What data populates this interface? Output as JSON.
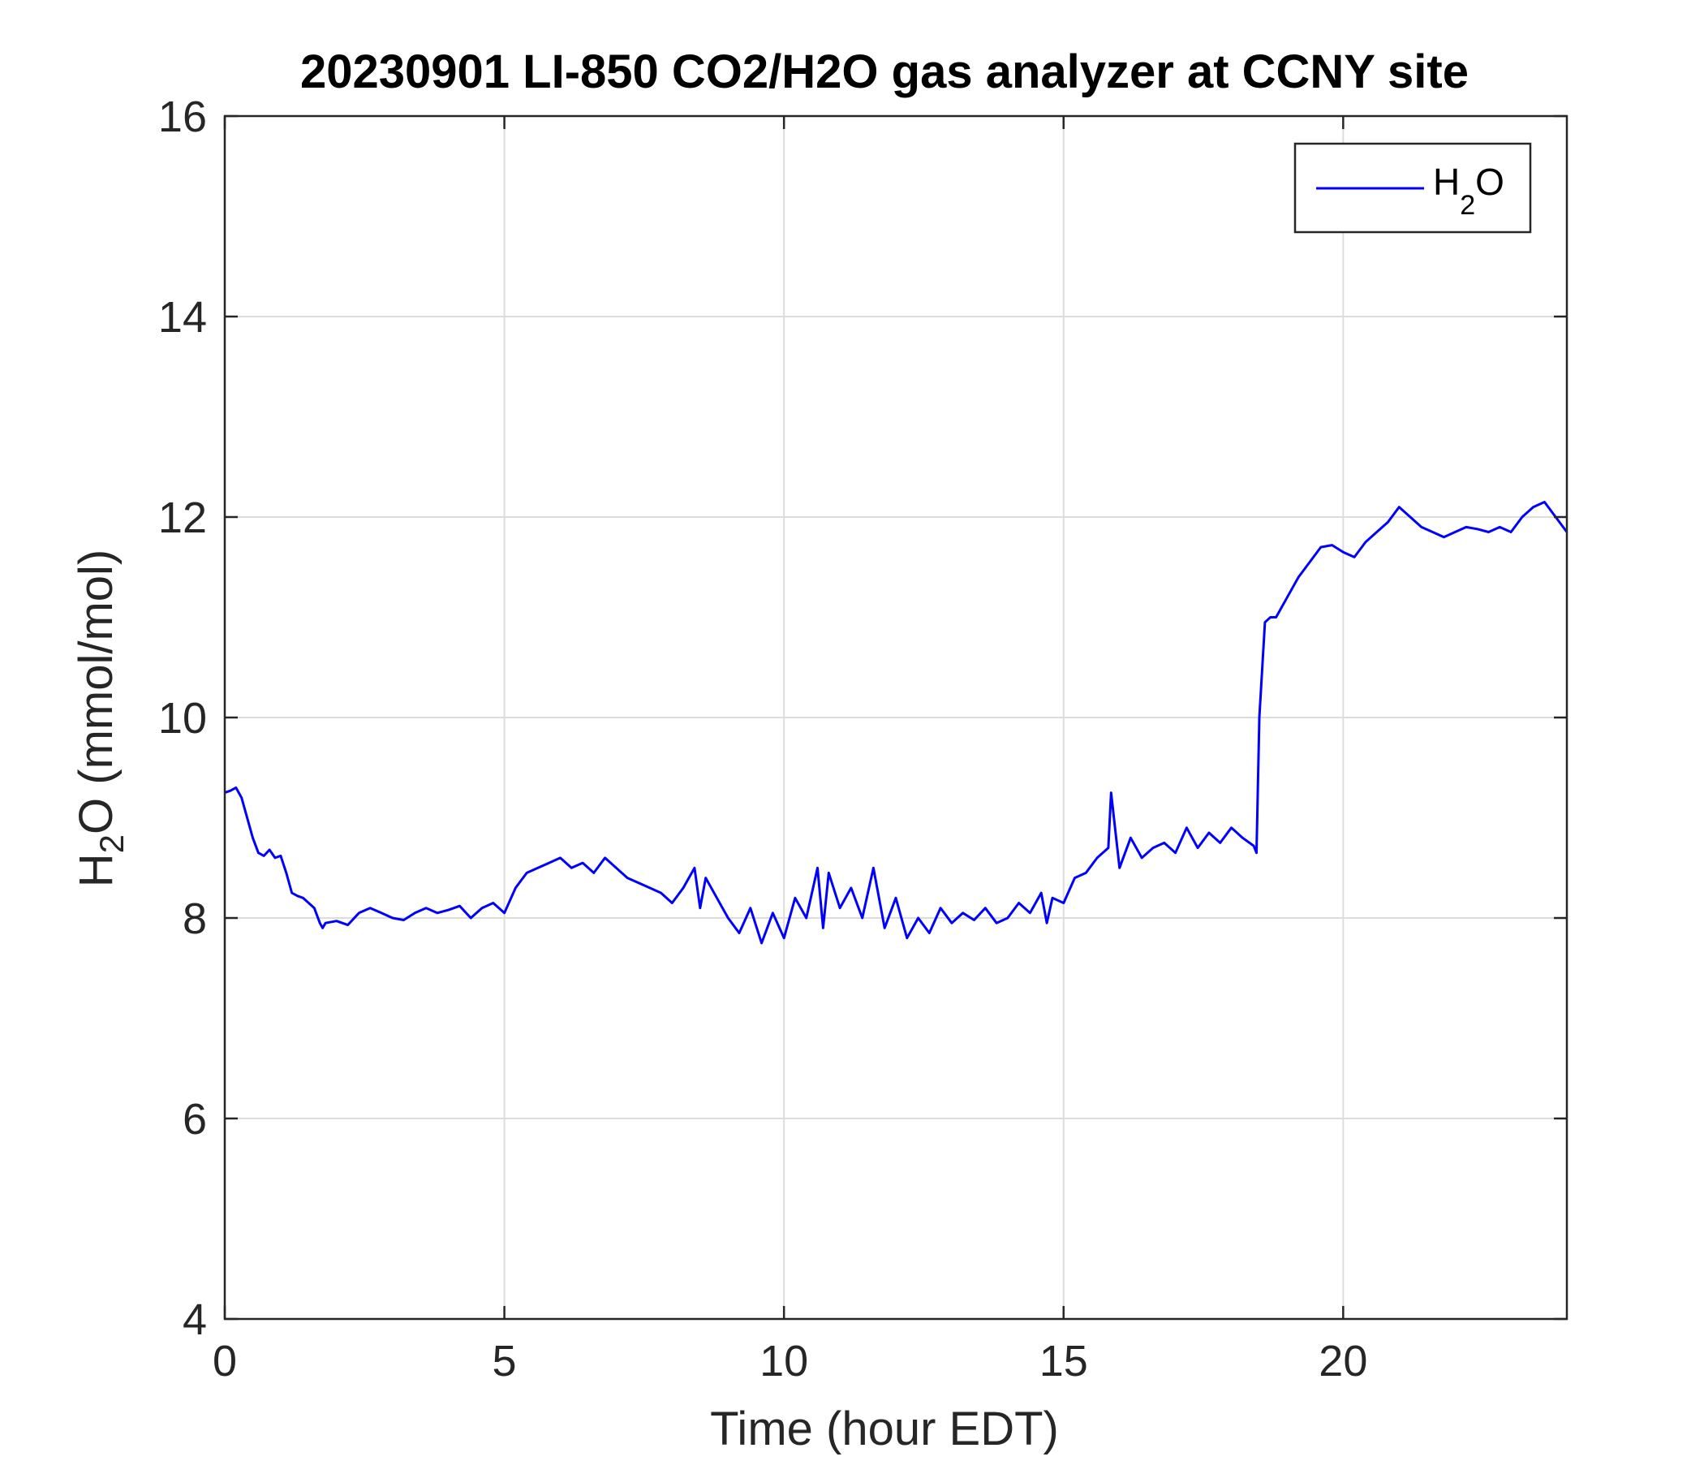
{
  "chart_data": {
    "type": "line",
    "title": "20230901 LI-850 CO2/H2O gas analyzer at CCNY site",
    "xlabel": "Time (hour EDT)",
    "ylabel": {
      "main": "H",
      "sub": "2",
      "rest": "O (mmol/mol)"
    },
    "xlim": [
      0,
      24
    ],
    "ylim": [
      4,
      16
    ],
    "xticks": [
      0,
      5,
      10,
      15,
      20
    ],
    "yticks": [
      4,
      6,
      8,
      10,
      12,
      14,
      16
    ],
    "grid": true,
    "legend_position": "top-right",
    "series": [
      {
        "name": {
          "main": "H",
          "sub": "2",
          "rest": "O"
        },
        "color": "#0000ff",
        "x": [
          0.0,
          0.1,
          0.2,
          0.3,
          0.4,
          0.5,
          0.6,
          0.7,
          0.8,
          0.9,
          1.0,
          1.1,
          1.2,
          1.3,
          1.4,
          1.5,
          1.6,
          1.7,
          1.75,
          1.8,
          2.0,
          2.2,
          2.4,
          2.6,
          2.8,
          3.0,
          3.2,
          3.4,
          3.6,
          3.8,
          4.0,
          4.2,
          4.4,
          4.6,
          4.8,
          5.0,
          5.2,
          5.4,
          5.6,
          5.8,
          6.0,
          6.2,
          6.4,
          6.6,
          6.8,
          7.0,
          7.2,
          7.4,
          7.6,
          7.8,
          8.0,
          8.2,
          8.4,
          8.5,
          8.6,
          8.8,
          9.0,
          9.2,
          9.4,
          9.6,
          9.8,
          10.0,
          10.2,
          10.4,
          10.6,
          10.7,
          10.8,
          11.0,
          11.2,
          11.4,
          11.6,
          11.8,
          12.0,
          12.2,
          12.4,
          12.6,
          12.8,
          13.0,
          13.2,
          13.4,
          13.6,
          13.8,
          14.0,
          14.2,
          14.4,
          14.6,
          14.7,
          14.8,
          15.0,
          15.2,
          15.4,
          15.6,
          15.8,
          15.85,
          16.0,
          16.2,
          16.4,
          16.6,
          16.8,
          17.0,
          17.2,
          17.4,
          17.6,
          17.8,
          18.0,
          18.2,
          18.4,
          18.45,
          18.5,
          18.6,
          18.7,
          18.8,
          19.0,
          19.2,
          19.4,
          19.6,
          19.8,
          20.0,
          20.2,
          20.4,
          20.6,
          20.8,
          21.0,
          21.2,
          21.4,
          21.6,
          21.8,
          22.0,
          22.2,
          22.4,
          22.6,
          22.8,
          23.0,
          23.2,
          23.4,
          23.6,
          23.8,
          24.0
        ],
        "y": [
          9.25,
          9.27,
          9.3,
          9.2,
          9.0,
          8.8,
          8.65,
          8.62,
          8.68,
          8.6,
          8.62,
          8.45,
          8.25,
          8.22,
          8.2,
          8.15,
          8.1,
          7.95,
          7.9,
          7.95,
          7.97,
          7.93,
          8.05,
          8.1,
          8.05,
          8.0,
          7.98,
          8.05,
          8.1,
          8.05,
          8.08,
          8.12,
          8.0,
          8.1,
          8.15,
          8.05,
          8.3,
          8.45,
          8.5,
          8.55,
          8.6,
          8.5,
          8.55,
          8.45,
          8.6,
          8.5,
          8.4,
          8.35,
          8.3,
          8.25,
          8.15,
          8.3,
          8.5,
          8.1,
          8.4,
          8.2,
          8.0,
          7.85,
          8.1,
          7.75,
          8.05,
          7.8,
          8.2,
          8.0,
          8.5,
          7.9,
          8.45,
          8.1,
          8.3,
          8.0,
          8.5,
          7.9,
          8.2,
          7.8,
          8.0,
          7.85,
          8.1,
          7.95,
          8.05,
          7.98,
          8.1,
          7.95,
          8.0,
          8.15,
          8.05,
          8.25,
          7.95,
          8.2,
          8.15,
          8.4,
          8.45,
          8.6,
          8.7,
          9.25,
          8.5,
          8.8,
          8.6,
          8.7,
          8.75,
          8.65,
          8.9,
          8.7,
          8.85,
          8.75,
          8.9,
          8.8,
          8.72,
          8.65,
          10.0,
          10.95,
          11.0,
          11.0,
          11.2,
          11.4,
          11.55,
          11.7,
          11.72,
          11.65,
          11.6,
          11.75,
          11.85,
          11.95,
          12.1,
          12.0,
          11.9,
          11.85,
          11.8,
          11.85,
          11.9,
          11.88,
          11.85,
          11.9,
          11.85,
          12.0,
          12.1,
          12.15,
          12.0,
          11.85
        ]
      }
    ]
  }
}
